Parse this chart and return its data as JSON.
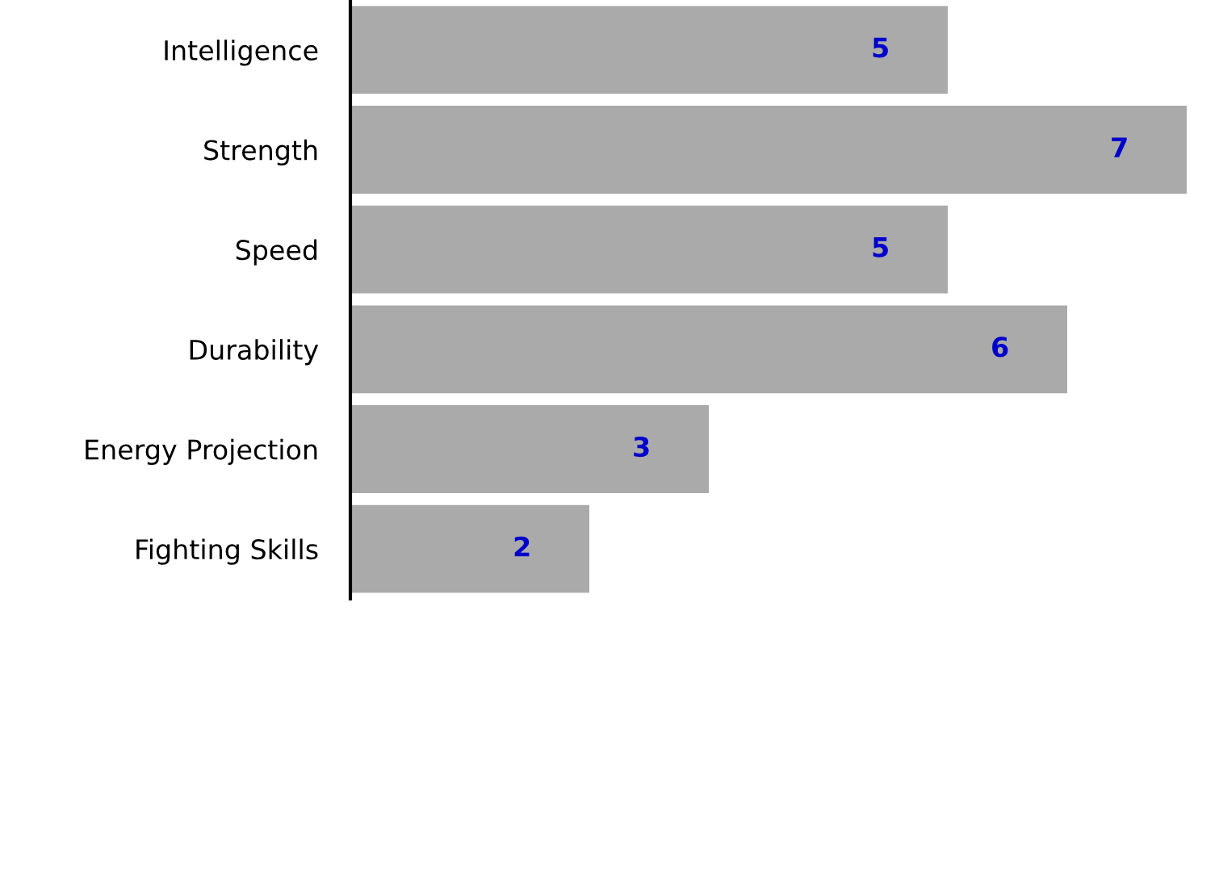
{
  "chart_data": {
    "type": "bar",
    "orientation": "horizontal",
    "categories": [
      "Intelligence",
      "Strength",
      "Speed",
      "Durability",
      "Energy Projection",
      "Fighting Skills"
    ],
    "values": [
      5,
      7,
      5,
      6,
      3,
      2
    ],
    "color": "#aaaaaa",
    "xlim": [
      0,
      7
    ],
    "data_labels": true,
    "grid": false,
    "legend": false
  }
}
